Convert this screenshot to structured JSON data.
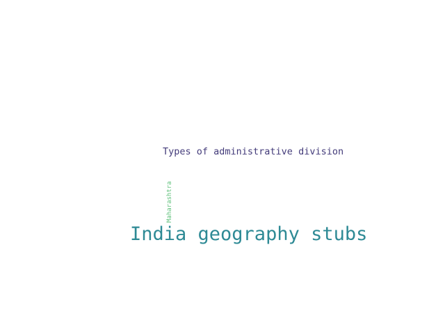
{
  "word_cloud": {
    "words": [
      {
        "text": "Types of administrative division",
        "color": "#433b7a"
      },
      {
        "text": "Maharashtra",
        "color": "#5ec07a"
      },
      {
        "text": "India geography stubs",
        "color": "#2e8a95"
      }
    ]
  }
}
